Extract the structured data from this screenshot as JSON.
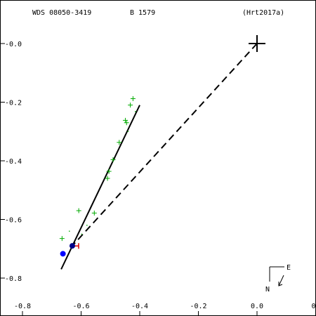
{
  "header": {
    "wds_id": "WDS 08050-3419",
    "discoverer": "B  1579",
    "reference": "(Hrt2017a)"
  },
  "compass": {
    "north": "N",
    "east": "E"
  },
  "chart_data": {
    "type": "scatter",
    "xlim": [
      -0.9,
      0.2
    ],
    "ylim": [
      -0.9,
      0.1
    ],
    "x_ticks": [
      {
        "value": -0.8,
        "label": "-0.8"
      },
      {
        "value": -0.6,
        "label": "-0.6"
      },
      {
        "value": -0.4,
        "label": "-0.4"
      },
      {
        "value": -0.2,
        "label": "-0.2"
      },
      {
        "value": 0.0,
        "label": "0.0"
      },
      {
        "value": 0.2,
        "label": "0."
      }
    ],
    "y_ticks": [
      {
        "value": 0.0,
        "label": "-0.0"
      },
      {
        "value": -0.2,
        "label": "-0.2"
      },
      {
        "value": -0.4,
        "label": "-0.4"
      },
      {
        "value": -0.6,
        "label": "-0.6"
      },
      {
        "value": -0.8,
        "label": "-0.8"
      }
    ],
    "primary": {
      "x": 0.0,
      "y": 0.0
    },
    "observations": {
      "color": "#00aa00",
      "points": [
        {
          "x": -0.423,
          "y": -0.188
        },
        {
          "x": -0.432,
          "y": -0.21
        },
        {
          "x": -0.449,
          "y": -0.262
        },
        {
          "x": -0.445,
          "y": -0.27
        },
        {
          "x": -0.47,
          "y": -0.337
        },
        {
          "x": -0.491,
          "y": -0.396
        },
        {
          "x": -0.505,
          "y": -0.436
        },
        {
          "x": -0.51,
          "y": -0.46
        },
        {
          "x": -0.555,
          "y": -0.578
        },
        {
          "x": -0.608,
          "y": -0.57
        },
        {
          "x": -0.665,
          "y": -0.665
        }
      ]
    },
    "minor_dots": [
      {
        "x": -0.415,
        "y": -0.232
      },
      {
        "x": -0.44,
        "y": -0.3
      },
      {
        "x": -0.58,
        "y": -0.62
      },
      {
        "x": -0.64,
        "y": -0.64
      },
      {
        "x": -0.598,
        "y": -0.65
      }
    ],
    "fit_line": [
      {
        "x": -0.4,
        "y": -0.21
      },
      {
        "x": -0.668,
        "y": -0.77
      }
    ],
    "dashed_line": [
      {
        "x": 0.0,
        "y": 0.0
      },
      {
        "x": -0.63,
        "y": -0.69
      }
    ],
    "blue_points": [
      {
        "x": -0.63,
        "y": -0.69,
        "color": "#00008b"
      },
      {
        "x": -0.662,
        "y": -0.717,
        "color": "#0000ff"
      }
    ],
    "red_marker": {
      "x": -0.618,
      "y": -0.7,
      "color": "#dd0000"
    }
  }
}
